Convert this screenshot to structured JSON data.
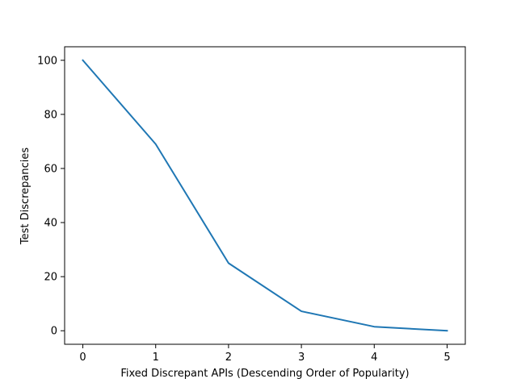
{
  "chart_data": {
    "type": "line",
    "title": "",
    "xlabel": "Fixed Discrepant APIs (Descending Order of Popularity)",
    "ylabel": "Test Discrepancies",
    "x": [
      0,
      1,
      2,
      3,
      4,
      5
    ],
    "series": [
      {
        "color": "#1f77b4",
        "values": [
          100,
          69,
          25,
          7.2,
          1.5,
          0
        ]
      }
    ],
    "xticks": [
      0,
      1,
      2,
      3,
      4,
      5
    ],
    "yticks": [
      0,
      20,
      40,
      60,
      80,
      100
    ],
    "xlim": [
      -0.25,
      5.25
    ],
    "ylim": [
      -5,
      105
    ],
    "grid": false,
    "legend": "none"
  }
}
